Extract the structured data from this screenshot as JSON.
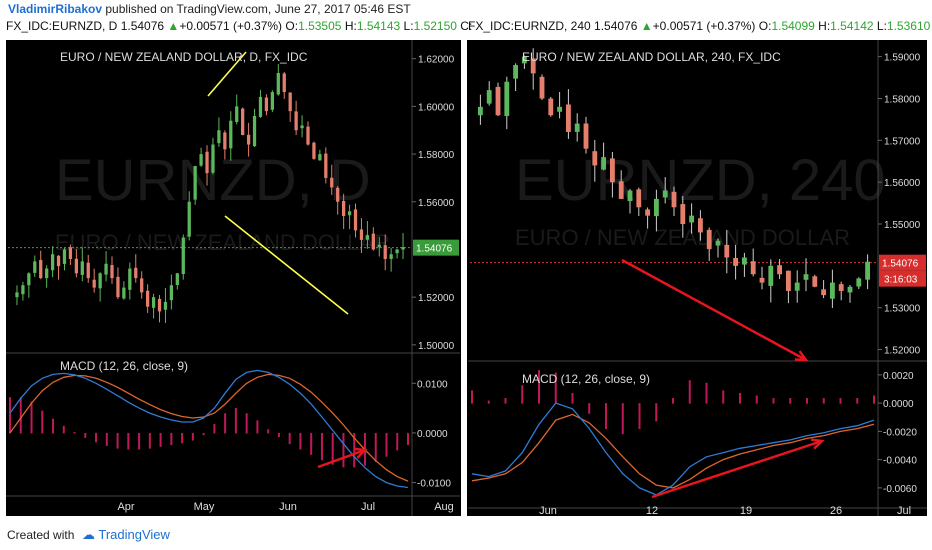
{
  "header": {
    "author": "VladimirRibakov",
    "published": "published on TradingView.com, June 27, 2017 05:46 EST"
  },
  "left": {
    "symbol": "FX_IDC:EURNZD, D",
    "price": "1.54076",
    "change": "+0.00571 (+0.37%)",
    "o_label": "O:",
    "o": "1.53505",
    "h_label": "H:",
    "h": "1.54143",
    "l_label": "L:",
    "l": "1.52150",
    "c_label": "C:",
    "title": "EURO / NEW ZEALAND DOLLAR, D, FX_IDC",
    "watermark": "EURNZD, D",
    "watermark2": "EURO / NEW ZEALAND DOLLAR",
    "macd_label": "MACD (12, 26, close, 9)"
  },
  "right": {
    "symbol": "FX_IDC:EURNZD, 240",
    "price": "1.54076",
    "change": "+0.00571 (+0.37%)",
    "o_label": "O:",
    "o": "1.54099",
    "h_label": "H:",
    "h": "1.54142",
    "l_label": "L:",
    "l": "1.53610",
    "title": "EURO / NEW ZEALAND DOLLAR, 240, FX_IDC",
    "watermark": "EURNZD, 240",
    "watermark2": "EURO / NEW ZEALAND DOLLAR",
    "macd_label": "MACD (12, 26, close, 9)",
    "countdown": "3:16:03"
  },
  "footer": {
    "created": "Created with",
    "brand": "TradingView"
  },
  "colors": {
    "bg": "#000000",
    "up": "#5cb85c",
    "down": "#e67e6e",
    "macd": "#2e7bd6",
    "signal": "#e0662a",
    "hist": "#c2185b",
    "trend": "#ffff4d",
    "arrow": "#e8141e"
  },
  "chart_data": [
    {
      "type": "candlestick",
      "title": "EURO / NEW ZEALAND DOLLAR, D, FX_IDC",
      "x_ticks": [
        "Apr",
        "May",
        "Jun",
        "Jul",
        "Aug"
      ],
      "y_ticks": [
        "1.62000",
        "1.60000",
        "1.58000",
        "1.56000",
        "1.54076",
        "1.52000",
        "1.50000"
      ],
      "ylim": [
        1.497,
        1.627
      ],
      "last_price": 1.54076,
      "close_series": [
        1.522,
        1.525,
        1.53,
        1.535,
        1.528,
        1.532,
        1.538,
        1.533,
        1.54,
        1.536,
        1.53,
        1.535,
        1.528,
        1.524,
        1.53,
        1.534,
        1.528,
        1.52,
        1.524,
        1.532,
        1.528,
        1.522,
        1.516,
        1.52,
        1.514,
        1.518,
        1.525,
        1.53,
        1.545,
        1.56,
        1.575,
        1.58,
        1.572,
        1.584,
        1.59,
        1.582,
        1.594,
        1.6,
        1.588,
        1.584,
        1.596,
        1.604,
        1.598,
        1.606,
        1.614,
        1.606,
        1.598,
        1.59,
        1.592,
        1.584,
        1.578,
        1.58,
        1.57,
        1.566,
        1.56,
        1.554,
        1.556,
        1.548,
        1.544,
        1.546,
        1.54,
        1.542,
        1.536,
        1.538,
        1.54,
        1.541
      ],
      "macd_yticks": [
        "0.0100",
        "0.0000",
        "-0.0100"
      ],
      "macd_ylim": [
        -0.0115,
        0.0155
      ],
      "macd": [
        0.004,
        0.007,
        0.0095,
        0.011,
        0.0118,
        0.012,
        0.0117,
        0.011,
        0.01,
        0.0088,
        0.0075,
        0.0062,
        0.005,
        0.004,
        0.0032,
        0.0026,
        0.0022,
        0.0022,
        0.003,
        0.005,
        0.008,
        0.0108,
        0.0122,
        0.0126,
        0.0122,
        0.0112,
        0.0098,
        0.008,
        0.0058,
        0.0032,
        0.0005,
        -0.0022,
        -0.0048,
        -0.007,
        -0.0088,
        -0.01,
        -0.0107,
        -0.011
      ],
      "signal": [
        0.0,
        0.003,
        0.006,
        0.0085,
        0.0102,
        0.0112,
        0.0116,
        0.0115,
        0.011,
        0.0102,
        0.0092,
        0.008,
        0.0068,
        0.0057,
        0.0047,
        0.0039,
        0.0033,
        0.003,
        0.0032,
        0.004,
        0.0058,
        0.008,
        0.01,
        0.0112,
        0.0118,
        0.0116,
        0.011,
        0.0098,
        0.0082,
        0.0062,
        0.004,
        0.0016,
        -0.001,
        -0.0034,
        -0.0056,
        -0.0074,
        -0.0088,
        -0.0097
      ],
      "trendlines": [
        {
          "color": "yellow",
          "from": [
            "late Apr",
            1.597
          ],
          "to": [
            "mid May",
            1.623
          ]
        },
        {
          "color": "yellow",
          "from": [
            "early May",
            1.559
          ],
          "to": [
            "end Jun",
            1.515
          ]
        }
      ],
      "macd_arrow": {
        "color": "red",
        "direction": "up",
        "from": [
          "late Jun",
          -0.0063
        ],
        "to": [
          "end Jun",
          -0.003
        ]
      }
    },
    {
      "type": "candlestick",
      "title": "EURO / NEW ZEALAND DOLLAR, 240, FX_IDC",
      "x_ticks": [
        "Jun",
        "12",
        "19",
        "26",
        "Jul"
      ],
      "y_ticks": [
        "1.59000",
        "1.58000",
        "1.57000",
        "1.56000",
        "1.55000",
        "1.54076",
        "1.53000",
        "1.52000"
      ],
      "ylim": [
        1.5175,
        1.5935
      ],
      "last_price": 1.54076,
      "close_series": [
        1.578,
        1.582,
        1.576,
        1.584,
        1.588,
        1.59,
        1.586,
        1.58,
        1.576,
        1.578,
        1.572,
        1.574,
        1.568,
        1.564,
        1.566,
        1.56,
        1.556,
        1.558,
        1.554,
        1.552,
        1.556,
        1.558,
        1.554,
        1.55,
        1.552,
        1.548,
        1.544,
        1.546,
        1.542,
        1.54,
        1.542,
        1.538,
        1.536,
        1.54,
        1.538,
        1.534,
        1.536,
        1.538,
        1.535,
        1.533,
        1.536,
        1.534,
        1.535,
        1.537,
        1.541
      ],
      "macd_yticks": [
        "0.0020",
        "0.0000",
        "-0.0020",
        "-0.0040",
        "-0.0060"
      ],
      "macd_ylim": [
        -0.007,
        0.0027
      ],
      "macd": [
        -0.005,
        -0.0052,
        -0.0048,
        -0.0035,
        -0.0015,
        0.0,
        -0.0004,
        -0.0018,
        -0.0035,
        -0.005,
        -0.006,
        -0.0065,
        -0.0058,
        -0.0045,
        -0.0038,
        -0.0035,
        -0.0032,
        -0.003,
        -0.0028,
        -0.0026,
        -0.0023,
        -0.0021,
        -0.0018,
        -0.0016,
        -0.0012
      ],
      "signal": [
        -0.0055,
        -0.0053,
        -0.005,
        -0.0042,
        -0.0028,
        -0.0012,
        -0.0008,
        -0.0014,
        -0.0025,
        -0.0038,
        -0.005,
        -0.0058,
        -0.006,
        -0.0054,
        -0.0046,
        -0.004,
        -0.0036,
        -0.0033,
        -0.003,
        -0.0028,
        -0.0025,
        -0.0023,
        -0.002,
        -0.0018,
        -0.0015
      ],
      "price_arrow": {
        "color": "red",
        "direction": "down",
        "from": [
          "early 9",
          1.5415
        ],
        "to": [
          "end 26",
          1.5205
        ]
      },
      "macd_arrow": {
        "color": "red",
        "direction": "up",
        "from": [
          "12",
          -0.0064
        ],
        "to": [
          "end 26",
          -0.0027
        ]
      }
    }
  ]
}
